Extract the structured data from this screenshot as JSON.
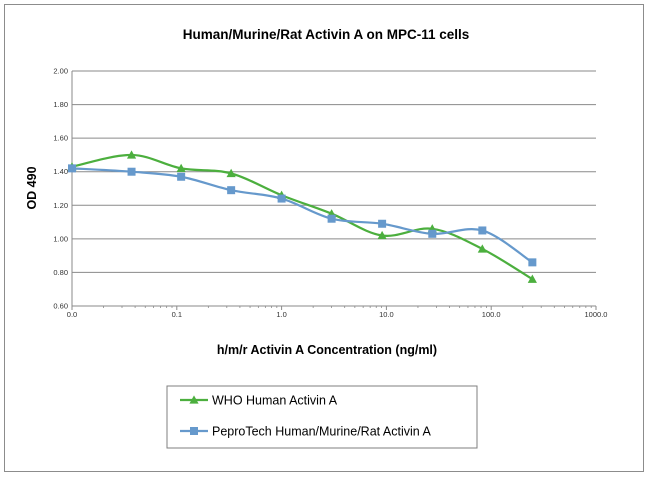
{
  "chart_data": {
    "type": "line",
    "title": "Human/Murine/Rat Activin A on MPC-11 cells",
    "xlabel": "h/m/r Activin A Concentration (ng/ml)",
    "ylabel": "OD 490",
    "x_scale": "log",
    "x_tick_values": [
      0.01,
      0.1,
      1,
      10,
      100,
      1000
    ],
    "x_tick_labels": [
      "0.0",
      "0.1",
      "1.0",
      "10.0",
      "100.0",
      "1000.0"
    ],
    "y_tick_values": [
      0.6,
      0.8,
      1.0,
      1.2,
      1.4,
      1.6,
      1.8,
      2.0
    ],
    "y_tick_labels": [
      "0.60",
      "0.80",
      "1.00",
      "1.20",
      "1.40",
      "1.60",
      "1.80",
      "2.00"
    ],
    "ylim": [
      0.6,
      2.0
    ],
    "xlim": [
      0.01,
      1000
    ],
    "grid": "horizontal",
    "legend_position": "bottom-center",
    "series": [
      {
        "name": "WHO Human Activin A",
        "color": "#4caf3e",
        "marker": "triangle",
        "x": [
          0.01,
          0.037,
          0.11,
          0.33,
          1.0,
          3.0,
          9.1,
          27.4,
          82.3,
          247
        ],
        "values": [
          1.43,
          1.5,
          1.42,
          1.39,
          1.26,
          1.15,
          1.02,
          1.06,
          0.94,
          0.76
        ]
      },
      {
        "name": "PeproTech Human/Murine/Rat Activin A",
        "color": "#6699cc",
        "marker": "square",
        "x": [
          0.01,
          0.037,
          0.11,
          0.33,
          1.0,
          3.0,
          9.1,
          27.4,
          82.3,
          247
        ],
        "values": [
          1.42,
          1.4,
          1.37,
          1.29,
          1.24,
          1.12,
          1.09,
          1.03,
          1.05,
          0.86
        ]
      }
    ]
  }
}
